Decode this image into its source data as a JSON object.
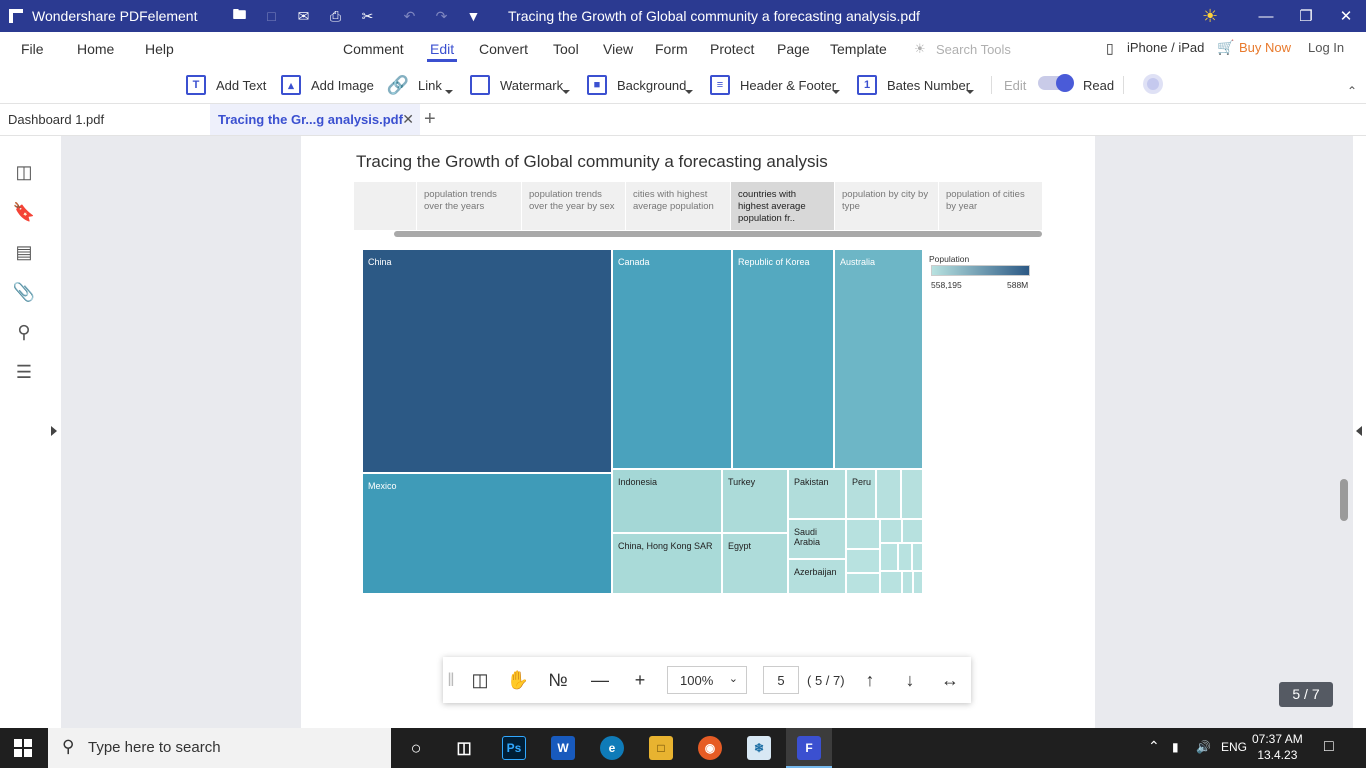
{
  "app": {
    "name": "Wondershare PDFelement",
    "document_title": "Tracing the Growth of Global community a forecasting analysis.pdf"
  },
  "menu": {
    "file": "File",
    "home": "Home",
    "help": "Help",
    "comment": "Comment",
    "edit": "Edit",
    "convert": "Convert",
    "tool": "Tool",
    "view": "View",
    "form": "Form",
    "protect": "Protect",
    "page": "Page",
    "template": "Template",
    "search_placeholder": "Search Tools",
    "iphone": "iPhone / iPad",
    "buy": "Buy Now",
    "login": "Log In"
  },
  "toolbar": {
    "add_text": "Add Text",
    "add_image": "Add Image",
    "link": "Link",
    "watermark": "Watermark",
    "background": "Background",
    "header_footer": "Header & Footer",
    "bates_number": "Bates Number",
    "edit": "Edit",
    "read": "Read"
  },
  "tabs": [
    {
      "label": "Dashboard 1.pdf"
    },
    {
      "label": "Tracing  the  Gr...g analysis.pdf"
    }
  ],
  "document": {
    "heading": "Tracing the Growth of Global community a forecasting analysis",
    "story_points": [
      "population trends over the years",
      "population trends over the year by sex",
      "cities with highest average population",
      "countries with highest average population fr..",
      "population by city by type",
      "population of cities by year"
    ],
    "selected_story": 3
  },
  "chart_data": {
    "type": "treemap",
    "legend_title": "Population",
    "legend_min": "558,195",
    "legend_max": "588M",
    "labeled_countries": [
      "China",
      "Mexico",
      "Canada",
      "Republic of Korea",
      "Australia",
      "Indonesia",
      "China, Hong Kong SAR",
      "Turkey",
      "Egypt",
      "Pakistan",
      "Saudi Arabia",
      "Azerbaijan",
      "Peru"
    ],
    "colors": {
      "low": "#b8e2e0",
      "high": "#2c5985"
    }
  },
  "floatbar": {
    "zoom": "100%",
    "page_input": "5",
    "page_total": "( 5 / 7)"
  },
  "page_badge": "5 / 7",
  "taskbar": {
    "search_placeholder": "Type here to search",
    "lang": "ENG",
    "time": "07:37 AM",
    "date": "13.4.23"
  }
}
